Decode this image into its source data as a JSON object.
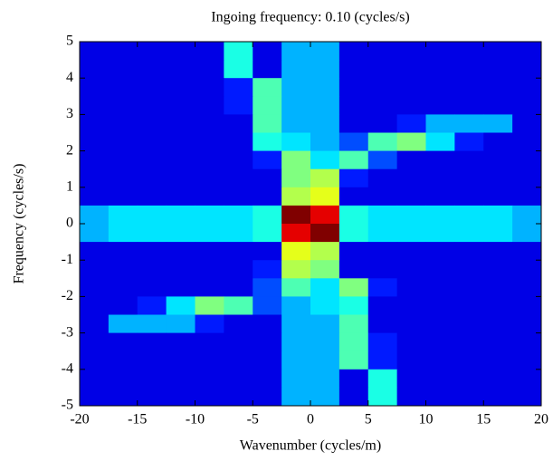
{
  "chart_data": {
    "type": "heatmap",
    "title": "Ingoing frequency: 0.10 (cycles/s)",
    "x_label": "Wavenumber (cycles/m)",
    "y_label": "Frequency (cycles/s)",
    "xlim": [
      -20,
      20
    ],
    "ylim": [
      -5,
      5
    ],
    "xticks": [
      -20,
      -15,
      -10,
      -5,
      0,
      5,
      10,
      15,
      20
    ],
    "yticks": [
      -5,
      -4,
      -3,
      -2,
      -1,
      0,
      1,
      2,
      3,
      4,
      5
    ],
    "colormap": "jet",
    "zlim": [
      0,
      1
    ],
    "z": [
      [
        0.1,
        0.1,
        0.1,
        0.1,
        0.1,
        0.4,
        0.1,
        0.3,
        0.3,
        0.1,
        0.1,
        0.1,
        0.1,
        0.1,
        0.1,
        0.1
      ],
      [
        0.1,
        0.1,
        0.1,
        0.1,
        0.1,
        0.4,
        0.1,
        0.3,
        0.3,
        0.1,
        0.1,
        0.1,
        0.1,
        0.1,
        0.1,
        0.1
      ],
      [
        0.1,
        0.1,
        0.1,
        0.1,
        0.1,
        0.15,
        0.45,
        0.3,
        0.3,
        0.1,
        0.1,
        0.1,
        0.1,
        0.1,
        0.1,
        0.1
      ],
      [
        0.1,
        0.1,
        0.1,
        0.1,
        0.1,
        0.15,
        0.45,
        0.3,
        0.3,
        0.1,
        0.1,
        0.1,
        0.1,
        0.1,
        0.1,
        0.1
      ],
      [
        0.1,
        0.1,
        0.1,
        0.1,
        0.1,
        0.1,
        0.45,
        0.3,
        0.3,
        0.1,
        0.1,
        0.15,
        0.3,
        0.3,
        0.3,
        0.1
      ],
      [
        0.1,
        0.1,
        0.1,
        0.1,
        0.1,
        0.1,
        0.4,
        0.35,
        0.3,
        0.2,
        0.45,
        0.5,
        0.35,
        0.15,
        0.1,
        0.1
      ],
      [
        0.1,
        0.1,
        0.1,
        0.1,
        0.1,
        0.1,
        0.15,
        0.5,
        0.35,
        0.45,
        0.2,
        0.1,
        0.1,
        0.1,
        0.1,
        0.1
      ],
      [
        0.1,
        0.1,
        0.1,
        0.1,
        0.1,
        0.1,
        0.1,
        0.5,
        0.55,
        0.15,
        0.1,
        0.1,
        0.1,
        0.1,
        0.1,
        0.1
      ],
      [
        0.1,
        0.1,
        0.1,
        0.1,
        0.1,
        0.1,
        0.1,
        0.55,
        0.6,
        0.1,
        0.1,
        0.1,
        0.1,
        0.1,
        0.1,
        0.1
      ],
      [
        0.3,
        0.35,
        0.35,
        0.35,
        0.35,
        0.35,
        0.4,
        1,
        0.9,
        0.4,
        0.35,
        0.35,
        0.35,
        0.35,
        0.35,
        0.3
      ],
      [
        0.3,
        0.35,
        0.35,
        0.35,
        0.35,
        0.35,
        0.4,
        0.9,
        1,
        0.4,
        0.35,
        0.35,
        0.35,
        0.35,
        0.35,
        0.3
      ],
      [
        0.1,
        0.1,
        0.1,
        0.1,
        0.1,
        0.1,
        0.1,
        0.6,
        0.55,
        0.1,
        0.1,
        0.1,
        0.1,
        0.1,
        0.1,
        0.1
      ],
      [
        0.1,
        0.1,
        0.1,
        0.1,
        0.1,
        0.1,
        0.15,
        0.55,
        0.5,
        0.1,
        0.1,
        0.1,
        0.1,
        0.1,
        0.1,
        0.1
      ],
      [
        0.1,
        0.1,
        0.1,
        0.1,
        0.1,
        0.1,
        0.2,
        0.45,
        0.35,
        0.5,
        0.15,
        0.1,
        0.1,
        0.1,
        0.1,
        0.1
      ],
      [
        0.1,
        0.1,
        0.15,
        0.35,
        0.5,
        0.45,
        0.2,
        0.3,
        0.35,
        0.4,
        0.1,
        0.1,
        0.1,
        0.1,
        0.1,
        0.1
      ],
      [
        0.1,
        0.3,
        0.3,
        0.3,
        0.15,
        0.1,
        0.1,
        0.3,
        0.3,
        0.45,
        0.1,
        0.1,
        0.1,
        0.1,
        0.1,
        0.1
      ],
      [
        0.1,
        0.1,
        0.1,
        0.1,
        0.1,
        0.1,
        0.1,
        0.3,
        0.3,
        0.45,
        0.15,
        0.1,
        0.1,
        0.1,
        0.1,
        0.1
      ],
      [
        0.1,
        0.1,
        0.1,
        0.1,
        0.1,
        0.1,
        0.1,
        0.3,
        0.3,
        0.45,
        0.15,
        0.1,
        0.1,
        0.1,
        0.1,
        0.1
      ],
      [
        0.1,
        0.1,
        0.1,
        0.1,
        0.1,
        0.1,
        0.1,
        0.3,
        0.3,
        0.1,
        0.4,
        0.1,
        0.1,
        0.1,
        0.1,
        0.1
      ],
      [
        0.1,
        0.1,
        0.1,
        0.1,
        0.1,
        0.1,
        0.1,
        0.3,
        0.3,
        0.1,
        0.4,
        0.1,
        0.1,
        0.1,
        0.1,
        0.1
      ]
    ]
  }
}
